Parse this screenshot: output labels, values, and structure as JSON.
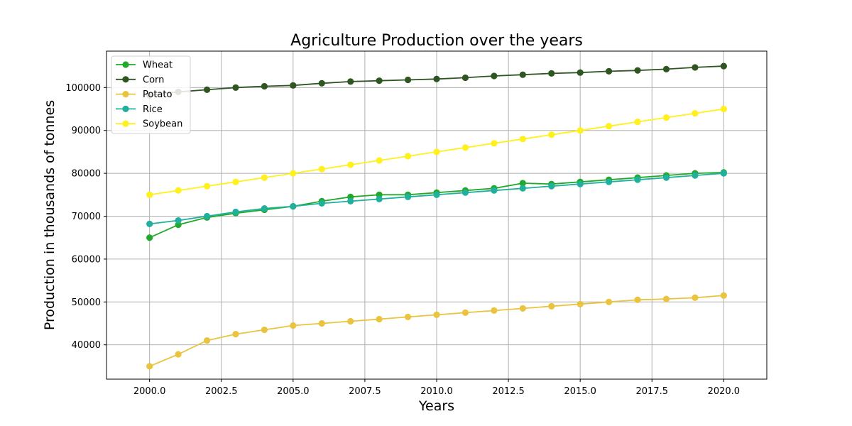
{
  "chart_data": {
    "type": "line",
    "title": "Agriculture Production over the years",
    "xlabel": "Years",
    "ylabel": "Production in thousands of tonnes",
    "xlim": [
      1998.5,
      2021.5
    ],
    "ylim": [
      32000,
      108500
    ],
    "xticks": [
      2000.0,
      2002.5,
      2005.0,
      2007.5,
      2010.0,
      2012.5,
      2015.0,
      2017.5,
      2020.0
    ],
    "xtick_labels": [
      "2000.0",
      "2002.5",
      "2005.0",
      "2007.5",
      "2010.0",
      "2012.5",
      "2015.0",
      "2017.5",
      "2020.0"
    ],
    "yticks": [
      40000,
      50000,
      60000,
      70000,
      80000,
      90000,
      100000
    ],
    "ytick_labels": [
      "40000",
      "50000",
      "60000",
      "70000",
      "80000",
      "90000",
      "100000"
    ],
    "grid": true,
    "legend_position": "top-left",
    "x": [
      2000,
      2001,
      2002,
      2003,
      2004,
      2005,
      2006,
      2007,
      2008,
      2009,
      2010,
      2011,
      2012,
      2013,
      2014,
      2015,
      2016,
      2017,
      2018,
      2019,
      2020
    ],
    "series": [
      {
        "name": "Wheat",
        "color": "#22a92c",
        "values": [
          65000,
          68000,
          69700,
          70700,
          71500,
          72300,
          73500,
          74500,
          75000,
          75000,
          75500,
          76000,
          76500,
          77700,
          77500,
          78000,
          78500,
          79000,
          79500,
          80000,
          80200
        ]
      },
      {
        "name": "Corn",
        "color": "#2f5521",
        "values": [
          98200,
          99000,
          99500,
          100000,
          100300,
          100500,
          101000,
          101400,
          101600,
          101800,
          102000,
          102300,
          102700,
          103000,
          103300,
          103500,
          103800,
          104000,
          104300,
          104700,
          105000
        ]
      },
      {
        "name": "Potato",
        "color": "#eac43f",
        "values": [
          35000,
          37800,
          41000,
          42500,
          43500,
          44500,
          45000,
          45500,
          46000,
          46500,
          47000,
          47500,
          48000,
          48500,
          49000,
          49500,
          50000,
          50500,
          50700,
          51000,
          51500
        ]
      },
      {
        "name": "Rice",
        "color": "#21b09d",
        "values": [
          68200,
          69000,
          70000,
          71000,
          71800,
          72300,
          73000,
          73500,
          74000,
          74500,
          75000,
          75500,
          76000,
          76500,
          77000,
          77500,
          78000,
          78500,
          79000,
          79500,
          80000
        ]
      },
      {
        "name": "Soybean",
        "color": "#fff01e",
        "values": [
          75000,
          76000,
          77000,
          78000,
          79000,
          80000,
          81000,
          82000,
          83000,
          84000,
          85000,
          86000,
          87000,
          88000,
          89000,
          90000,
          91000,
          92000,
          93000,
          94000,
          95000
        ]
      }
    ]
  }
}
